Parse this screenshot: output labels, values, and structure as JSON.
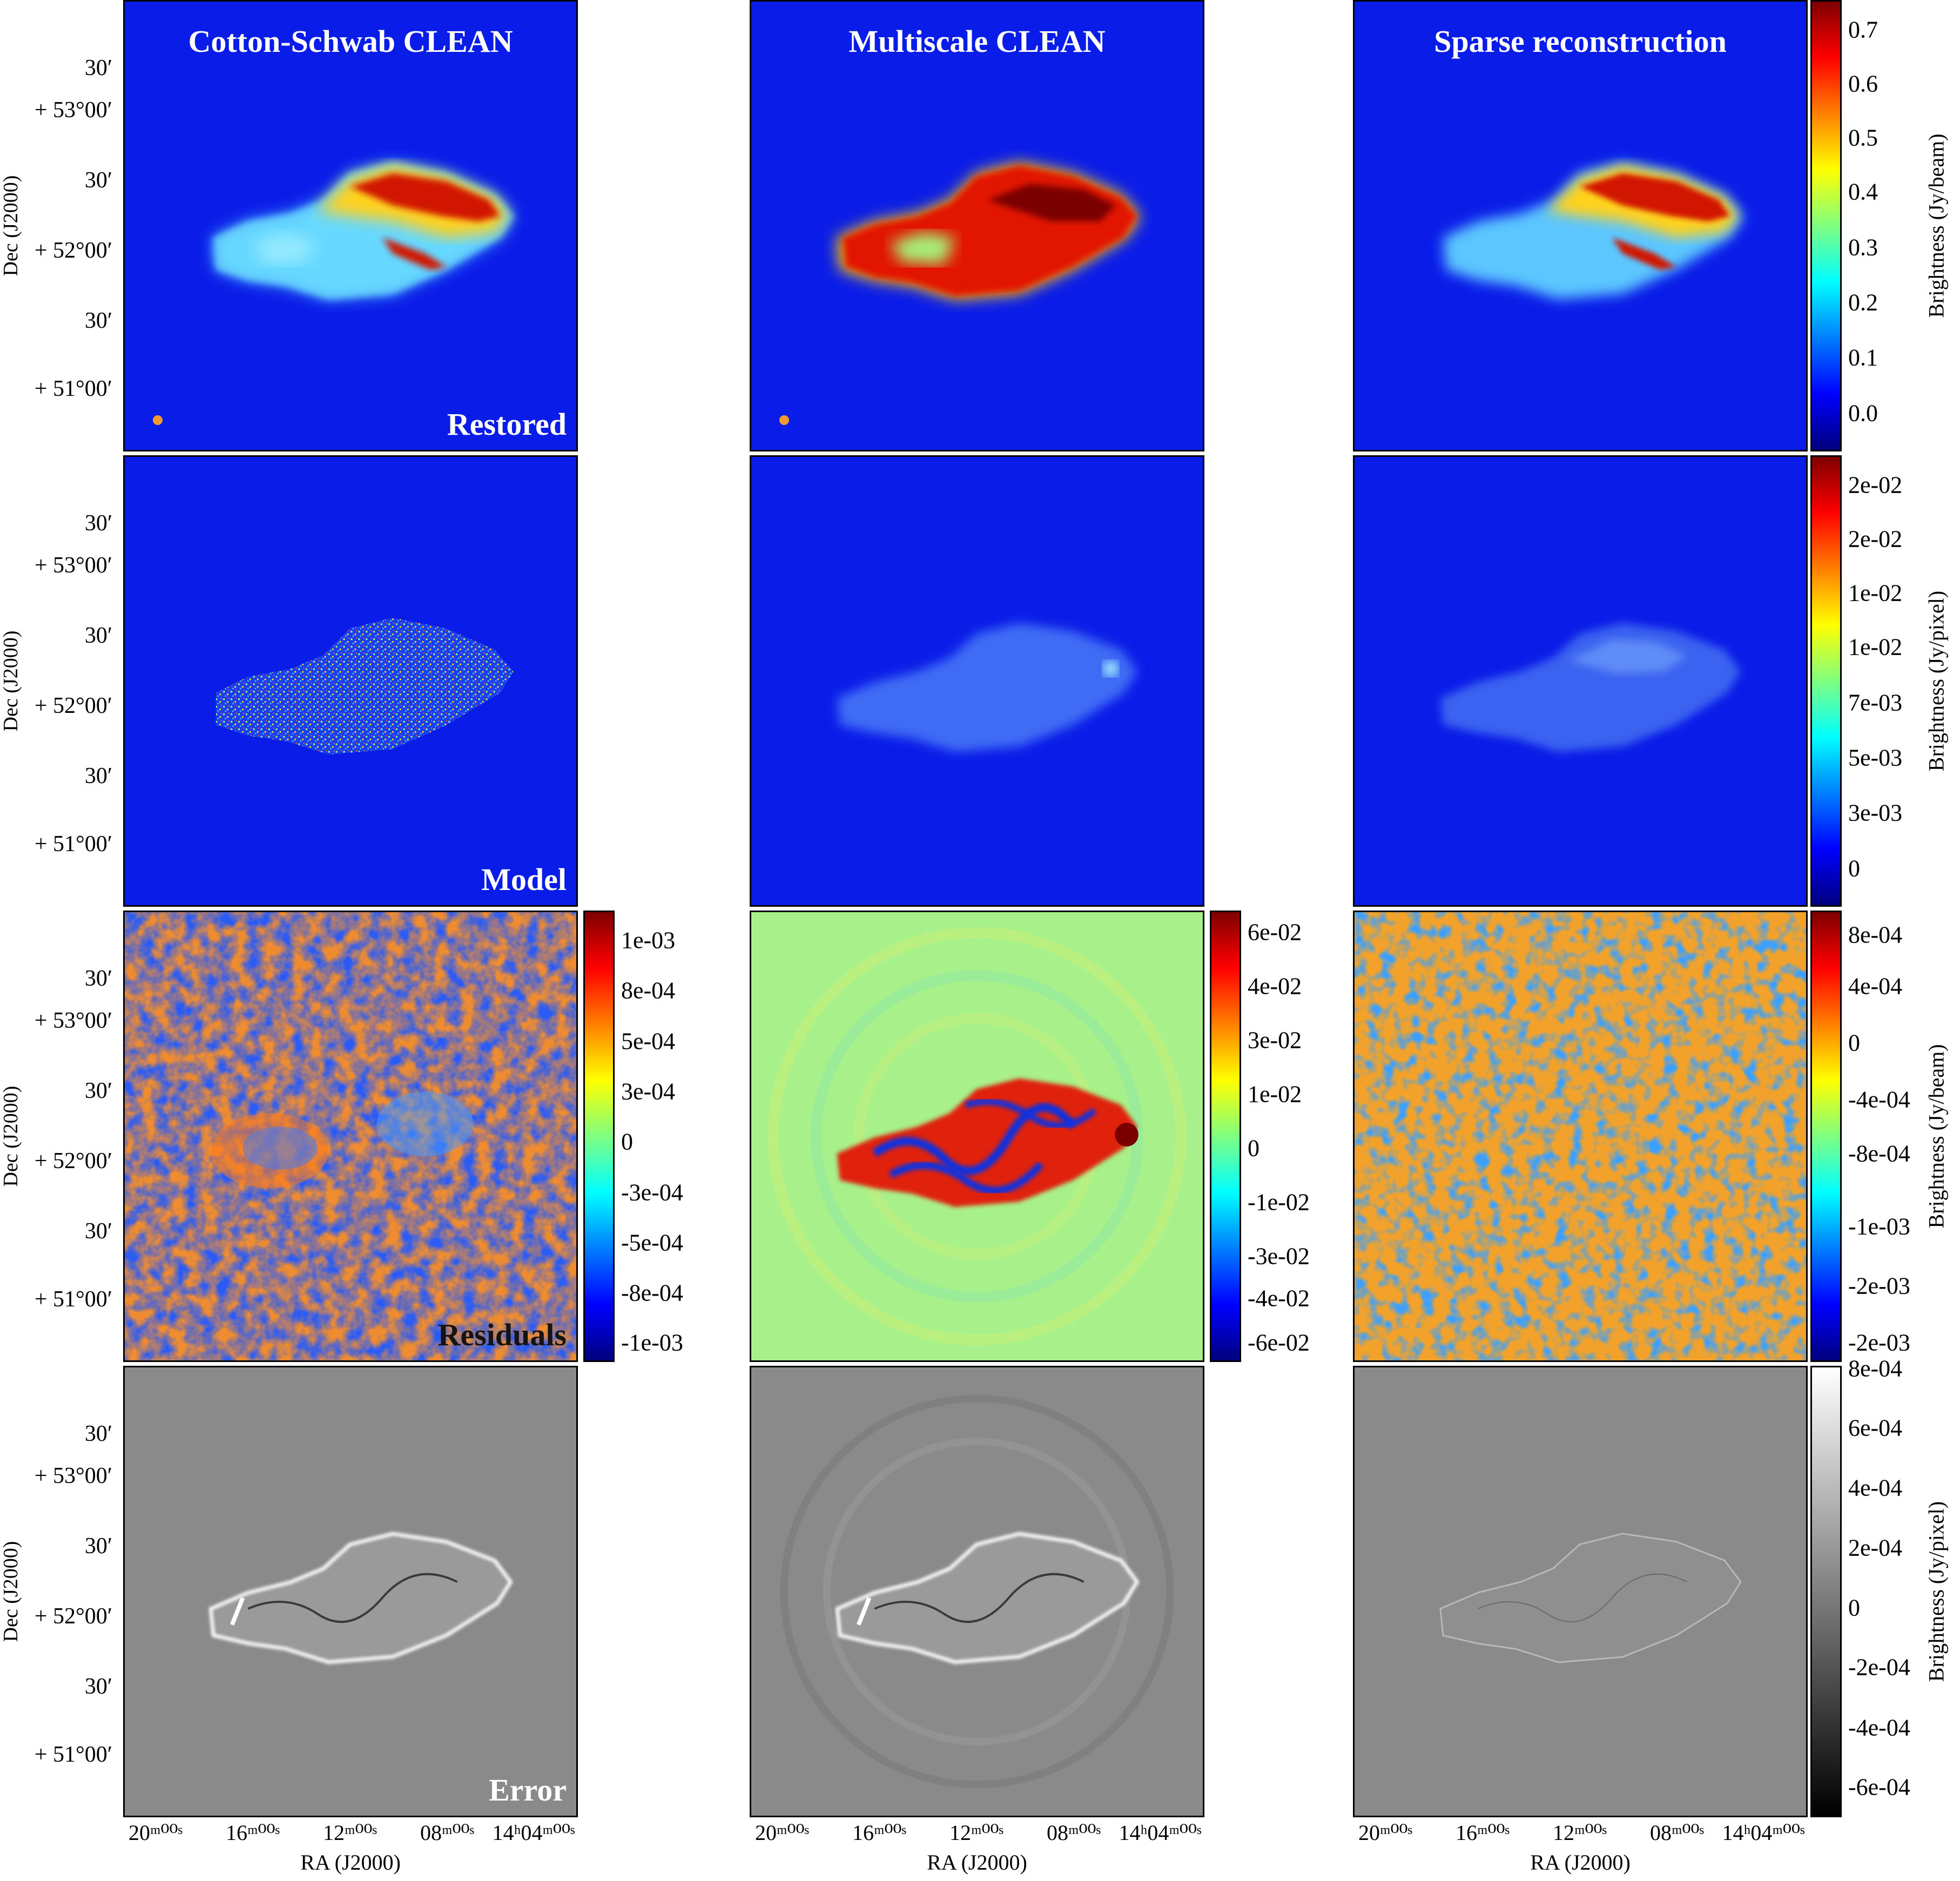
{
  "methods": [
    "Cotton-Schwab CLEAN",
    "Multiscale CLEAN",
    "Sparse reconstruction"
  ],
  "row_labels": [
    "Restored",
    "Model",
    "Residuals",
    "Error"
  ],
  "dec_axis": {
    "title": "Dec (J2000)",
    "ticks": [
      "30′",
      "+ 53°00′",
      "30′",
      "+ 52°00′",
      "30′",
      "+ 51°00′"
    ]
  },
  "ra_axis": {
    "title": "RA (J2000)",
    "ticks": [
      "20ᵐ⁰⁰ˢ",
      "16ᵐ⁰⁰ˢ",
      "12ᵐ⁰⁰ˢ",
      "08ᵐ⁰⁰ˢ",
      "14ʰ04ᵐ⁰⁰ˢ"
    ]
  },
  "colorbars": {
    "restored": {
      "title": "Brightness (Jy/beam)",
      "ticks": [
        "0.7",
        "0.6",
        "0.5",
        "0.4",
        "0.3",
        "0.2",
        "0.1",
        "0.0"
      ]
    },
    "model": {
      "title": "Brightness (Jy/pixel)",
      "ticks": [
        "2e-02",
        "2e-02",
        "1e-02",
        "1e-02",
        "7e-03",
        "5e-03",
        "3e-03",
        "0"
      ]
    },
    "residual_cs": {
      "ticks": [
        "1e-03",
        "8e-04",
        "5e-04",
        "3e-04",
        "0",
        "-3e-04",
        "-5e-04",
        "-8e-04",
        "-1e-03"
      ]
    },
    "residual_ms": {
      "ticks": [
        "6e-02",
        "4e-02",
        "3e-02",
        "1e-02",
        "0",
        "-1e-02",
        "-3e-02",
        "-4e-02",
        "-6e-02"
      ]
    },
    "residual_sparse": {
      "title": "Brightness (Jy/beam)",
      "ticks": [
        "8e-04",
        "4e-04",
        "0",
        "-4e-04",
        "-8e-04",
        "-1e-03",
        "-2e-03",
        "-2e-03"
      ]
    },
    "error": {
      "title": "Brightness (Jy/pixel)",
      "ticks": [
        "8e-04",
        "6e-04",
        "4e-04",
        "2e-04",
        "0",
        "-2e-04",
        "-4e-04",
        "-6e-04"
      ]
    }
  },
  "colormaps": {
    "jet": [
      "#00007f",
      "#0000ff",
      "#007fff",
      "#00ffff",
      "#7fff7f",
      "#ffff00",
      "#ff7f00",
      "#ff0000",
      "#7f0000"
    ],
    "gray": [
      "#000000",
      "#ffffff"
    ]
  }
}
